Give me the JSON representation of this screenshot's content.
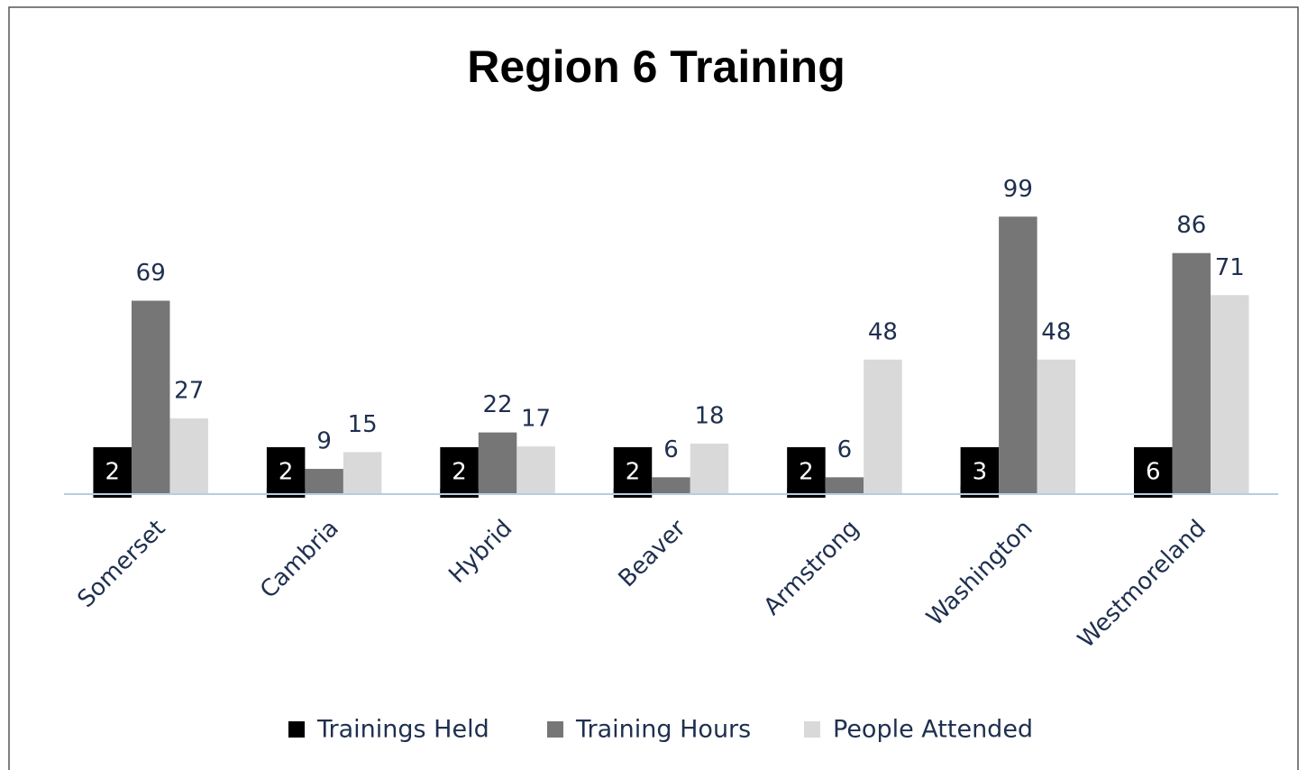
{
  "chart_data": {
    "type": "bar",
    "title": "Region 6 Training",
    "categories": [
      "Somerset",
      "Cambria",
      "Hybrid",
      "Beaver",
      "Armstrong",
      "Washington",
      "Westmoreland"
    ],
    "series": [
      {
        "name": "Trainings Held",
        "color": "#000000",
        "values": [
          2,
          2,
          2,
          2,
          2,
          3,
          6
        ]
      },
      {
        "name": "Training Hours",
        "color": "#767676",
        "values": [
          69,
          9,
          22,
          6,
          6,
          99,
          86
        ]
      },
      {
        "name": "People Attended",
        "color": "#d9d9d9",
        "values": [
          27,
          15,
          17,
          18,
          48,
          48,
          71
        ]
      }
    ],
    "ylim": [
      0,
      120
    ]
  }
}
